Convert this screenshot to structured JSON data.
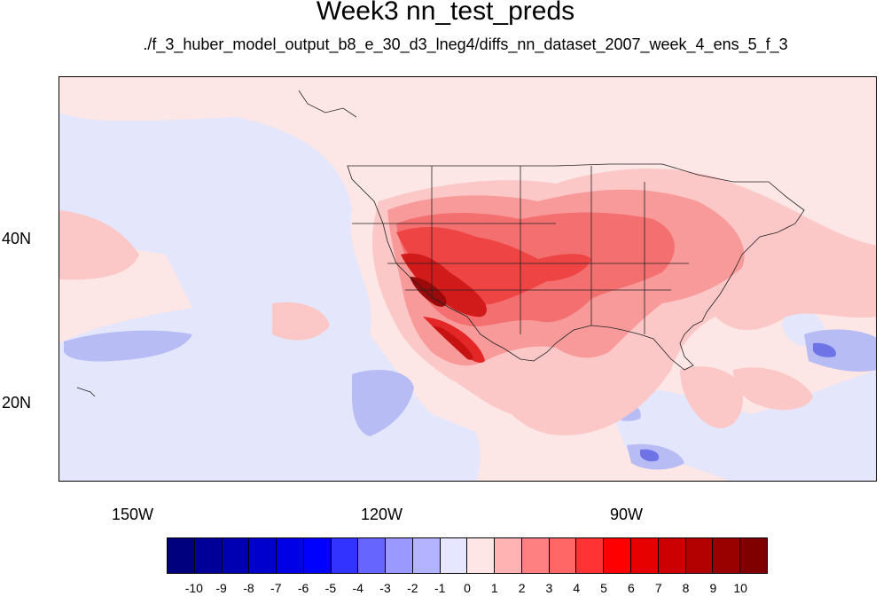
{
  "title": "Week3 nn_test_preds",
  "subtitle": "./f_3_huber_model_output_b8_e_30_d3_lneg4/diffs_nn_dataset_2007_week_4_ens_5_f_3",
  "lat_labels": [
    "40N",
    "20N"
  ],
  "lon_labels": [
    "150W",
    "120W",
    "90W"
  ],
  "colorbar": {
    "labels": [
      "-10",
      "-9",
      "-8",
      "-7",
      "-6",
      "-5",
      "-4",
      "-3",
      "-2",
      "-1",
      "0",
      "1",
      "2",
      "3",
      "4",
      "5",
      "6",
      "7",
      "8",
      "9",
      "10"
    ],
    "colors": [
      "#00007f",
      "#000099",
      "#0000b3",
      "#0000cc",
      "#0000e6",
      "#0000ff",
      "#3333ff",
      "#6666ff",
      "#9999ff",
      "#b3b3ff",
      "#e6e6ff",
      "#ffe6e6",
      "#ffb3b3",
      "#ff8080",
      "#ff6666",
      "#ff3333",
      "#ff0000",
      "#e60000",
      "#cc0000",
      "#b30000",
      "#990000",
      "#800000"
    ]
  },
  "map": {
    "extent": {
      "lon_min": -159.5,
      "lon_max": -60.5,
      "lat_min": 10,
      "lat_max": 59
    },
    "background_color": "#fde6e6"
  }
}
